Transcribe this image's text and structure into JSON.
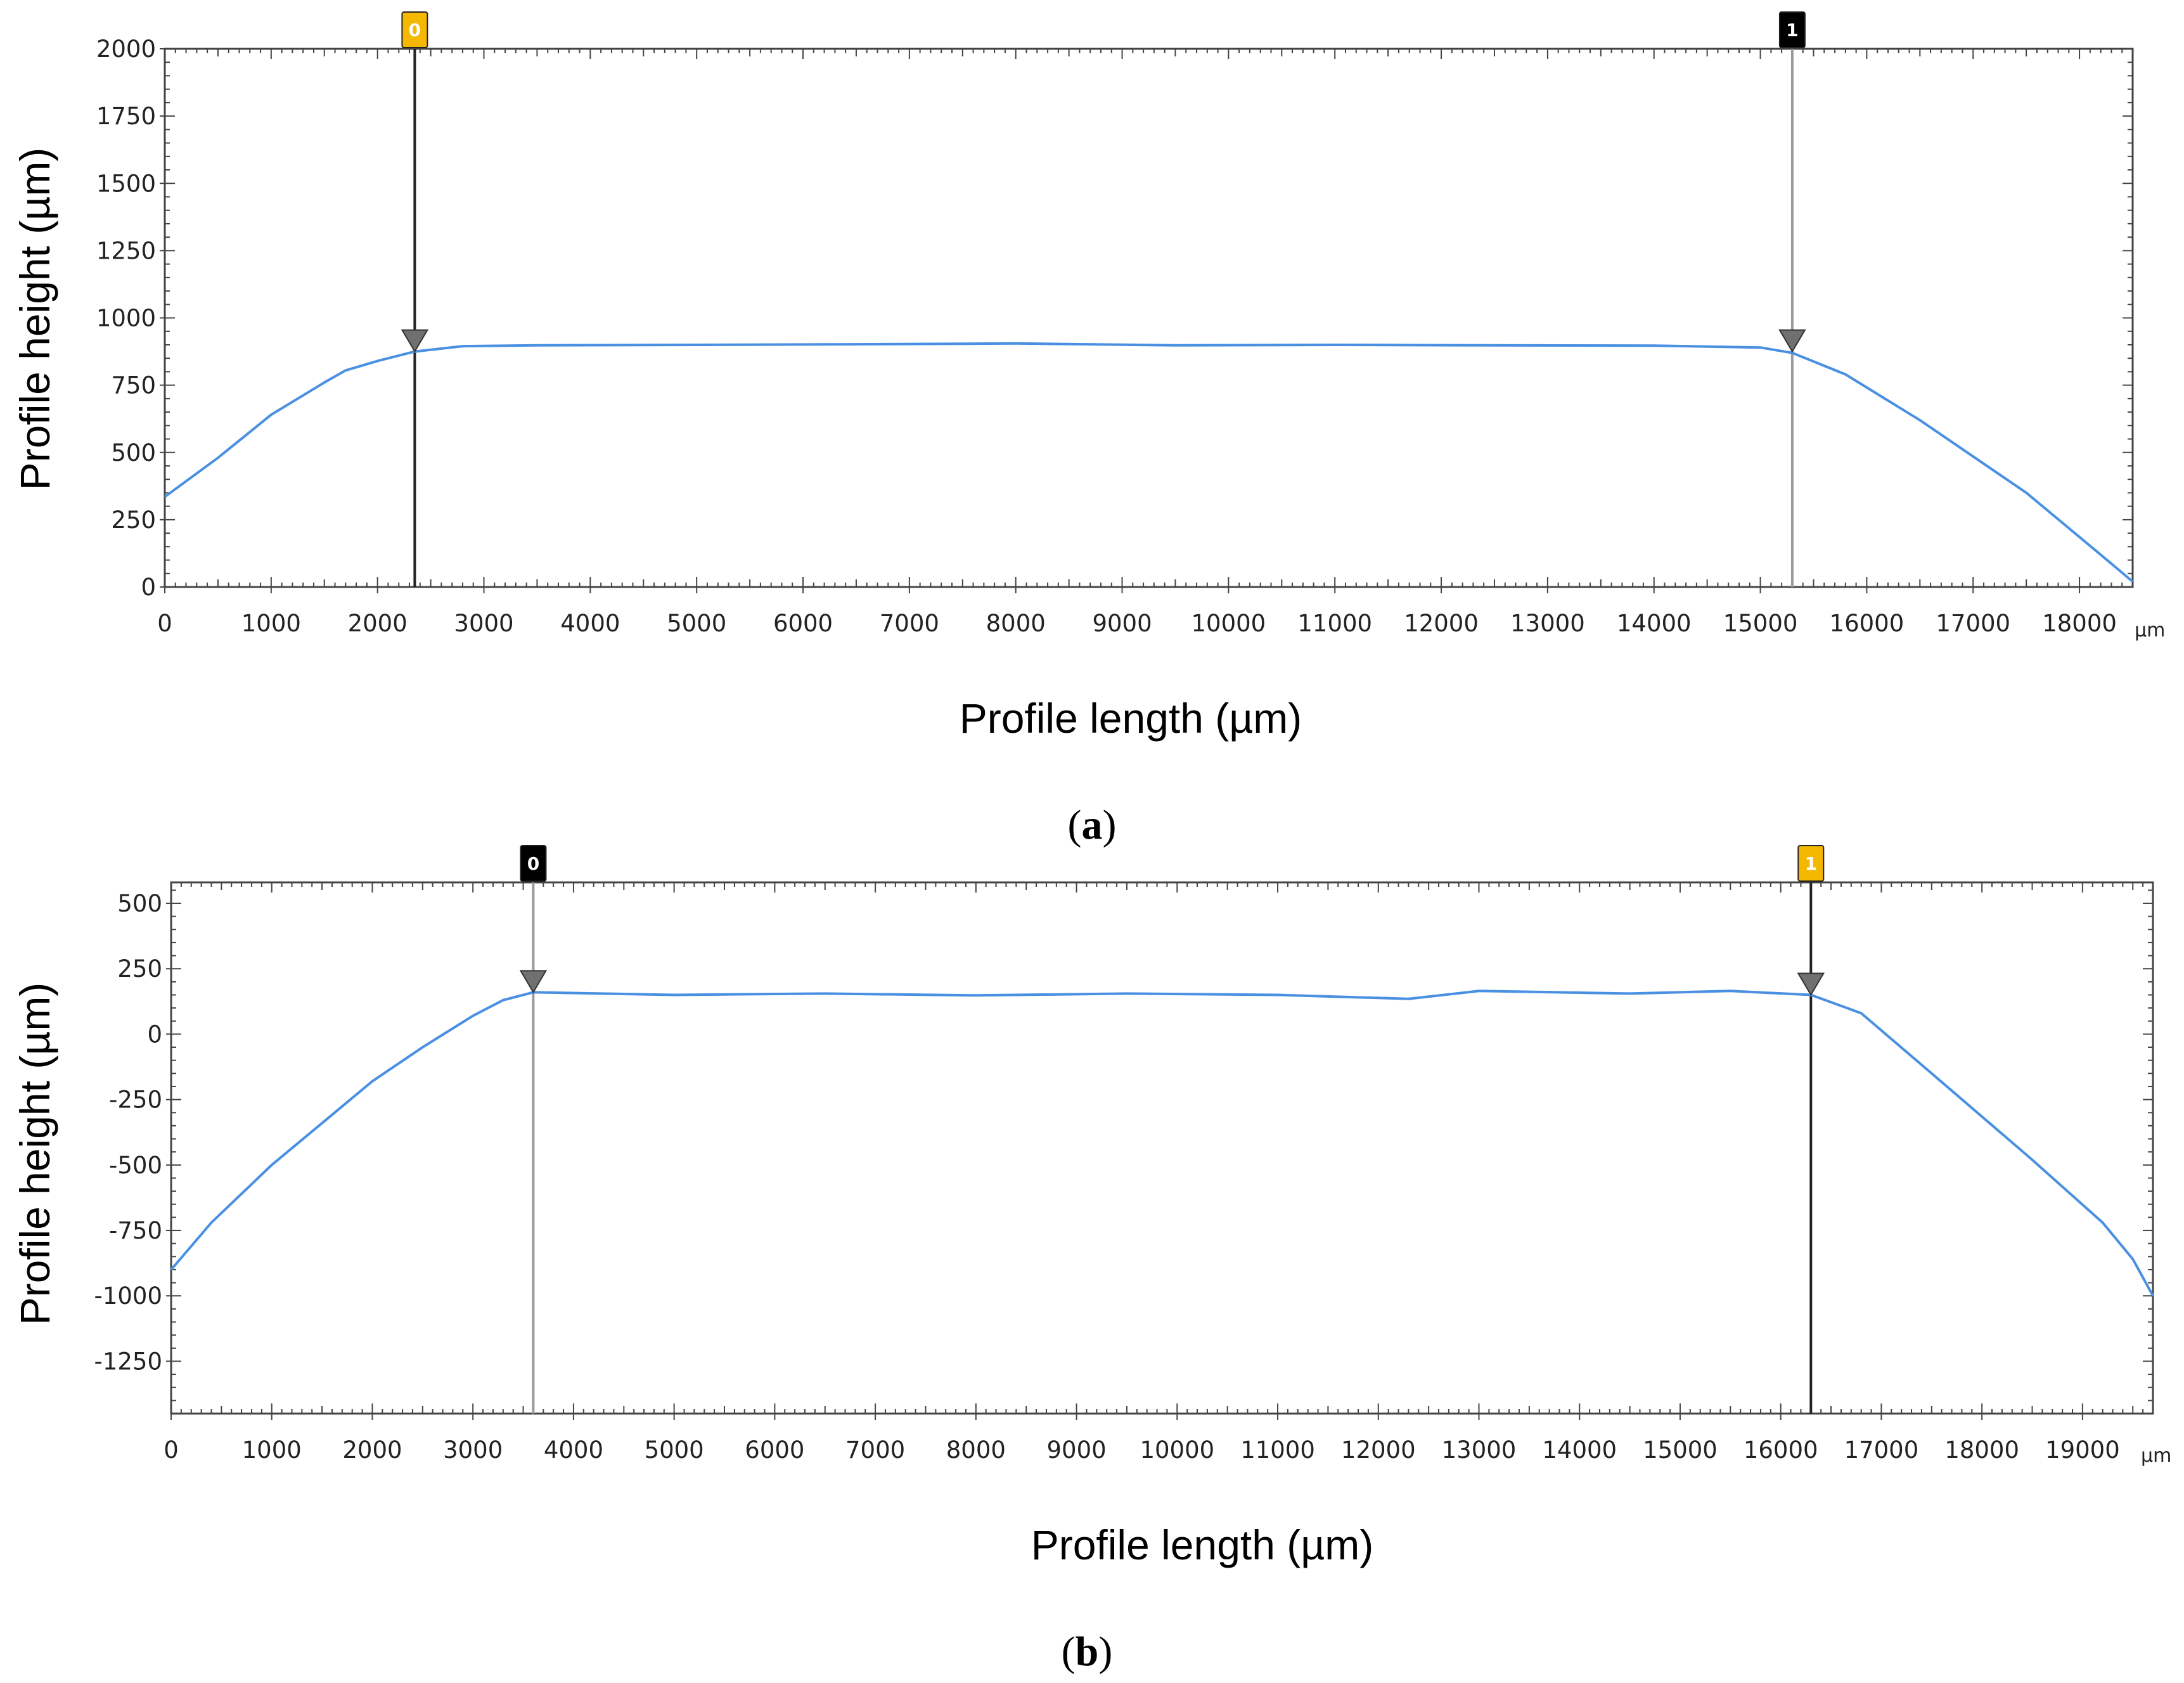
{
  "chart_data": [
    {
      "type": "line",
      "panel_label": "a",
      "xlabel": "Profile length (µm)",
      "ylabel": "Profile height (µm)",
      "x_unit": "µm",
      "xlim": [
        0,
        18500
      ],
      "ylim": [
        0,
        2000
      ],
      "x_ticks": [
        0,
        1000,
        2000,
        3000,
        4000,
        5000,
        6000,
        7000,
        8000,
        9000,
        10000,
        11000,
        12000,
        13000,
        14000,
        15000,
        16000,
        17000,
        18000
      ],
      "y_ticks": [
        0,
        250,
        500,
        750,
        1000,
        1250,
        1500,
        1750,
        2000
      ],
      "series": [
        {
          "name": "profile",
          "color": "#4a90e2",
          "x": [
            0,
            500,
            1000,
            1500,
            1700,
            2000,
            2350,
            2800,
            3500,
            5000,
            6500,
            8000,
            9500,
            11000,
            12500,
            14000,
            15000,
            15300,
            15800,
            16500,
            17500,
            18200,
            18500
          ],
          "y": [
            335,
            480,
            640,
            760,
            805,
            840,
            875,
            895,
            898,
            900,
            902,
            905,
            898,
            900,
            898,
            897,
            890,
            870,
            790,
            620,
            350,
            120,
            20
          ]
        }
      ],
      "markers": [
        {
          "label": "0",
          "x": 2350,
          "y": 875,
          "style": "yellow"
        },
        {
          "label": "1",
          "x": 15300,
          "y": 875,
          "style": "black"
        }
      ]
    },
    {
      "type": "line",
      "panel_label": "b",
      "xlabel": "Profile length (µm)",
      "ylabel": "Profile height (µm)",
      "x_unit": "µm",
      "xlim": [
        0,
        19700
      ],
      "ylim": [
        -1450,
        580
      ],
      "x_ticks": [
        0,
        1000,
        2000,
        3000,
        4000,
        5000,
        6000,
        7000,
        8000,
        9000,
        10000,
        11000,
        12000,
        13000,
        14000,
        15000,
        16000,
        17000,
        18000,
        19000
      ],
      "y_ticks": [
        500,
        250,
        0,
        -250,
        -500,
        -750,
        -1000,
        -1250
      ],
      "series": [
        {
          "name": "profile",
          "color": "#4a90e2",
          "x": [
            0,
            400,
            1000,
            1500,
            2000,
            2500,
            3000,
            3300,
            3600,
            5000,
            6500,
            8000,
            9500,
            11000,
            12300,
            13000,
            14500,
            15500,
            16300,
            16800,
            17500,
            18500,
            19200,
            19500,
            19700
          ],
          "y": [
            -900,
            -720,
            -500,
            -340,
            -180,
            -50,
            70,
            130,
            160,
            150,
            155,
            148,
            155,
            150,
            135,
            165,
            155,
            165,
            150,
            80,
            -150,
            -480,
            -720,
            -860,
            -1000
          ]
        }
      ],
      "markers": [
        {
          "label": "0",
          "x": 3600,
          "y": 160,
          "style": "black"
        },
        {
          "label": "1",
          "x": 16300,
          "y": 150,
          "style": "yellow"
        }
      ]
    }
  ],
  "colors": {
    "line": "#4a90e2",
    "marker_yellow": "#f5b800",
    "marker_black": "#000000",
    "cursor_dark": "#222222",
    "cursor_light": "#9a9a9a",
    "triangle": "#707070"
  }
}
